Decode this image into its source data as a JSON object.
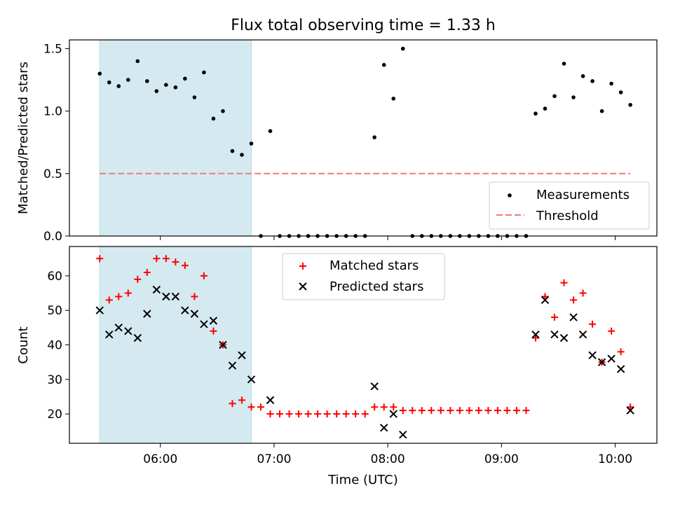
{
  "chart_data": [
    {
      "panel": "top",
      "type": "scatter",
      "title": "Flux total observing time = 1.33 h",
      "ylabel": "Matched/Predicted stars",
      "xlabel": "",
      "ylim": [
        0,
        1.57
      ],
      "y_ticks": [
        0.0,
        0.5,
        1.0,
        1.5
      ],
      "y_tick_labels": [
        "0.0",
        "0.5",
        "1.0",
        "1.5"
      ],
      "grid": false,
      "legend_position": "lower-right",
      "shaded_interval": [
        "05:28",
        "06:48"
      ],
      "shade_color": "#d4eaf0",
      "threshold": {
        "name": "Threshold",
        "value": 0.5,
        "x_range": [
          "05:28",
          "10:08"
        ],
        "color": "#f08080",
        "style": "dashed"
      },
      "series": [
        {
          "name": "Measurements",
          "marker": "dot",
          "color": "#000000",
          "points": [
            [
              "05:28",
              1.3
            ],
            [
              "05:33",
              1.23
            ],
            [
              "05:38",
              1.2
            ],
            [
              "05:43",
              1.25
            ],
            [
              "05:48",
              1.4
            ],
            [
              "05:53",
              1.24
            ],
            [
              "05:58",
              1.16
            ],
            [
              "06:03",
              1.21
            ],
            [
              "06:08",
              1.19
            ],
            [
              "06:13",
              1.26
            ],
            [
              "06:18",
              1.11
            ],
            [
              "06:23",
              1.31
            ],
            [
              "06:28",
              0.94
            ],
            [
              "06:33",
              1.0
            ],
            [
              "06:38",
              0.68
            ],
            [
              "06:43",
              0.65
            ],
            [
              "06:48",
              0.74
            ],
            [
              "06:53",
              0.0
            ],
            [
              "06:58",
              0.84
            ],
            [
              "07:03",
              0.0
            ],
            [
              "07:08",
              0.0
            ],
            [
              "07:13",
              0.0
            ],
            [
              "07:18",
              0.0
            ],
            [
              "07:23",
              0.0
            ],
            [
              "07:28",
              0.0
            ],
            [
              "07:33",
              0.0
            ],
            [
              "07:38",
              0.0
            ],
            [
              "07:43",
              0.0
            ],
            [
              "07:48",
              0.0
            ],
            [
              "07:53",
              0.79
            ],
            [
              "07:58",
              1.37
            ],
            [
              "08:03",
              1.1
            ],
            [
              "08:08",
              1.5
            ],
            [
              "08:13",
              0.0
            ],
            [
              "08:18",
              0.0
            ],
            [
              "08:23",
              0.0
            ],
            [
              "08:28",
              0.0
            ],
            [
              "08:33",
              0.0
            ],
            [
              "08:38",
              0.0
            ],
            [
              "08:43",
              0.0
            ],
            [
              "08:48",
              0.0
            ],
            [
              "08:53",
              0.0
            ],
            [
              "08:58",
              0.0
            ],
            [
              "09:03",
              0.0
            ],
            [
              "09:08",
              0.0
            ],
            [
              "09:13",
              0.0
            ],
            [
              "09:18",
              0.98
            ],
            [
              "09:23",
              1.02
            ],
            [
              "09:28",
              1.12
            ],
            [
              "09:33",
              1.38
            ],
            [
              "09:38",
              1.11
            ],
            [
              "09:43",
              1.28
            ],
            [
              "09:48",
              1.24
            ],
            [
              "09:53",
              1.0
            ],
            [
              "09:58",
              1.22
            ],
            [
              "10:03",
              1.15
            ],
            [
              "10:08",
              1.05
            ]
          ]
        }
      ]
    },
    {
      "panel": "bottom",
      "type": "scatter",
      "xlabel": "Time (UTC)",
      "ylabel": "Count",
      "ylim": [
        11.5,
        68.5
      ],
      "y_ticks": [
        20,
        30,
        40,
        50,
        60
      ],
      "y_tick_labels": [
        "20",
        "30",
        "40",
        "50",
        "60"
      ],
      "x_ticks": [
        "06:00",
        "07:00",
        "08:00",
        "09:00",
        "10:00"
      ],
      "x_tick_labels": [
        "06:00",
        "07:00",
        "08:00",
        "09:00",
        "10:00"
      ],
      "xlim": [
        "05:12",
        "10:22"
      ],
      "grid": false,
      "legend_position": "upper-center",
      "shaded_interval": [
        "05:28",
        "06:48"
      ],
      "shade_color": "#d4eaf0",
      "series": [
        {
          "name": "Matched stars",
          "marker": "plus",
          "color": "#ff0000",
          "points": [
            [
              "05:28",
              65
            ],
            [
              "05:33",
              53
            ],
            [
              "05:38",
              54
            ],
            [
              "05:43",
              55
            ],
            [
              "05:48",
              59
            ],
            [
              "05:53",
              61
            ],
            [
              "05:58",
              65
            ],
            [
              "06:03",
              65
            ],
            [
              "06:08",
              64
            ],
            [
              "06:13",
              63
            ],
            [
              "06:18",
              54
            ],
            [
              "06:23",
              60
            ],
            [
              "06:28",
              44
            ],
            [
              "06:33",
              40
            ],
            [
              "06:38",
              23
            ],
            [
              "06:43",
              24
            ],
            [
              "06:48",
              22
            ],
            [
              "06:53",
              22
            ],
            [
              "06:58",
              20
            ],
            [
              "07:03",
              20
            ],
            [
              "07:08",
              20
            ],
            [
              "07:13",
              20
            ],
            [
              "07:18",
              20
            ],
            [
              "07:23",
              20
            ],
            [
              "07:28",
              20
            ],
            [
              "07:33",
              20
            ],
            [
              "07:38",
              20
            ],
            [
              "07:43",
              20
            ],
            [
              "07:48",
              20
            ],
            [
              "07:53",
              22
            ],
            [
              "07:58",
              22
            ],
            [
              "08:03",
              22
            ],
            [
              "08:08",
              21
            ],
            [
              "08:13",
              21
            ],
            [
              "08:18",
              21
            ],
            [
              "08:23",
              21
            ],
            [
              "08:28",
              21
            ],
            [
              "08:33",
              21
            ],
            [
              "08:38",
              21
            ],
            [
              "08:43",
              21
            ],
            [
              "08:48",
              21
            ],
            [
              "08:53",
              21
            ],
            [
              "08:58",
              21
            ],
            [
              "09:03",
              21
            ],
            [
              "09:08",
              21
            ],
            [
              "09:13",
              21
            ],
            [
              "09:18",
              42
            ],
            [
              "09:23",
              54
            ],
            [
              "09:28",
              48
            ],
            [
              "09:33",
              58
            ],
            [
              "09:38",
              53
            ],
            [
              "09:43",
              55
            ],
            [
              "09:48",
              46
            ],
            [
              "09:53",
              35
            ],
            [
              "09:58",
              44
            ],
            [
              "10:03",
              38
            ],
            [
              "10:08",
              22
            ]
          ]
        },
        {
          "name": "Predicted stars",
          "marker": "x",
          "color": "#000000",
          "points": [
            [
              "05:28",
              50
            ],
            [
              "05:33",
              43
            ],
            [
              "05:38",
              45
            ],
            [
              "05:43",
              44
            ],
            [
              "05:48",
              42
            ],
            [
              "05:53",
              49
            ],
            [
              "05:58",
              56
            ],
            [
              "06:03",
              54
            ],
            [
              "06:08",
              54
            ],
            [
              "06:13",
              50
            ],
            [
              "06:18",
              49
            ],
            [
              "06:23",
              46
            ],
            [
              "06:28",
              47
            ],
            [
              "06:33",
              40
            ],
            [
              "06:38",
              34
            ],
            [
              "06:43",
              37
            ],
            [
              "06:48",
              30
            ],
            [
              "06:58",
              24
            ],
            [
              "07:53",
              28
            ],
            [
              "07:58",
              16
            ],
            [
              "08:03",
              20
            ],
            [
              "08:08",
              14
            ],
            [
              "09:18",
              43
            ],
            [
              "09:23",
              53
            ],
            [
              "09:28",
              43
            ],
            [
              "09:33",
              42
            ],
            [
              "09:38",
              48
            ],
            [
              "09:43",
              43
            ],
            [
              "09:48",
              37
            ],
            [
              "09:53",
              35
            ],
            [
              "09:58",
              36
            ],
            [
              "10:03",
              33
            ],
            [
              "10:08",
              21
            ]
          ]
        }
      ]
    }
  ]
}
